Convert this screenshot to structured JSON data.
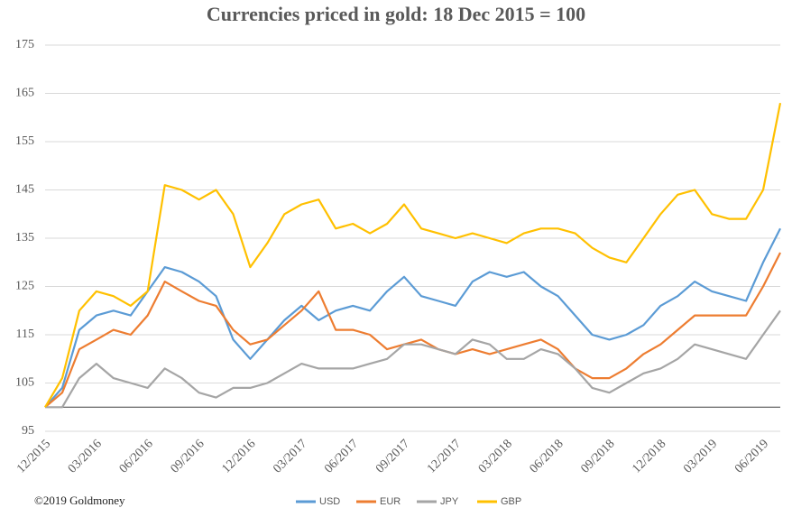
{
  "chart_data": {
    "type": "line",
    "title": "Currencies priced in gold: 18 Dec 2015 = 100",
    "footnote": "©2019 Goldmoney",
    "x": [
      "12/2015",
      "01/2016",
      "02/2016",
      "03/2016",
      "04/2016",
      "05/2016",
      "06/2016",
      "07/2016",
      "08/2016",
      "09/2016",
      "10/2016",
      "11/2016",
      "12/2016",
      "01/2017",
      "02/2017",
      "03/2017",
      "04/2017",
      "05/2017",
      "06/2017",
      "07/2017",
      "08/2017",
      "09/2017",
      "10/2017",
      "11/2017",
      "12/2017",
      "01/2018",
      "02/2018",
      "03/2018",
      "04/2018",
      "05/2018",
      "06/2018",
      "07/2018",
      "08/2018",
      "09/2018",
      "10/2018",
      "11/2018",
      "12/2018",
      "01/2019",
      "02/2019",
      "03/2019",
      "04/2019",
      "05/2019",
      "06/2019",
      "07/2019"
    ],
    "series": [
      {
        "name": "USD",
        "color": "#5b9bd5",
        "values": [
          100,
          104,
          116,
          119,
          120,
          119,
          124,
          129,
          128,
          126,
          123,
          114,
          110,
          114,
          118,
          121,
          118,
          120,
          121,
          120,
          124,
          127,
          123,
          122,
          121,
          126,
          128,
          127,
          128,
          125,
          123,
          119,
          115,
          114,
          115,
          117,
          121,
          123,
          126,
          124,
          123,
          122,
          130,
          137
        ]
      },
      {
        "name": "EUR",
        "color": "#ed7d31",
        "values": [
          100,
          103,
          112,
          114,
          116,
          115,
          119,
          126,
          124,
          122,
          121,
          116,
          113,
          114,
          117,
          120,
          124,
          116,
          116,
          115,
          112,
          113,
          114,
          112,
          111,
          112,
          111,
          112,
          113,
          114,
          112,
          108,
          106,
          106,
          108,
          111,
          113,
          116,
          119,
          119,
          119,
          119,
          125,
          132
        ]
      },
      {
        "name": "JPY",
        "color": "#a5a5a5",
        "values": [
          100,
          100,
          106,
          109,
          106,
          105,
          104,
          108,
          106,
          103,
          102,
          104,
          104,
          105,
          107,
          109,
          108,
          108,
          108,
          109,
          110,
          113,
          113,
          112,
          111,
          114,
          113,
          110,
          110,
          112,
          111,
          108,
          104,
          103,
          105,
          107,
          108,
          110,
          113,
          112,
          111,
          110,
          115,
          120
        ]
      },
      {
        "name": "GBP",
        "color": "#ffc000",
        "values": [
          100,
          106,
          120,
          124,
          123,
          121,
          124,
          146,
          145,
          143,
          145,
          140,
          129,
          134,
          140,
          142,
          143,
          137,
          138,
          136,
          138,
          142,
          137,
          136,
          135,
          136,
          135,
          134,
          136,
          137,
          137,
          136,
          133,
          131,
          130,
          135,
          140,
          144,
          145,
          140,
          139,
          139,
          145,
          163
        ]
      }
    ],
    "xlim": [
      "12/2015",
      "07/2019"
    ],
    "xticks": [
      "12/2015",
      "03/2016",
      "06/2016",
      "09/2016",
      "12/2016",
      "03/2017",
      "06/2017",
      "09/2017",
      "12/2017",
      "03/2018",
      "06/2018",
      "09/2018",
      "12/2018",
      "03/2019",
      "06/2019"
    ],
    "ylim": [
      95,
      175
    ],
    "yticks": [
      95,
      105,
      115,
      125,
      135,
      145,
      155,
      165,
      175
    ],
    "reference_line": 100,
    "grid": true,
    "legend": "bottom"
  }
}
